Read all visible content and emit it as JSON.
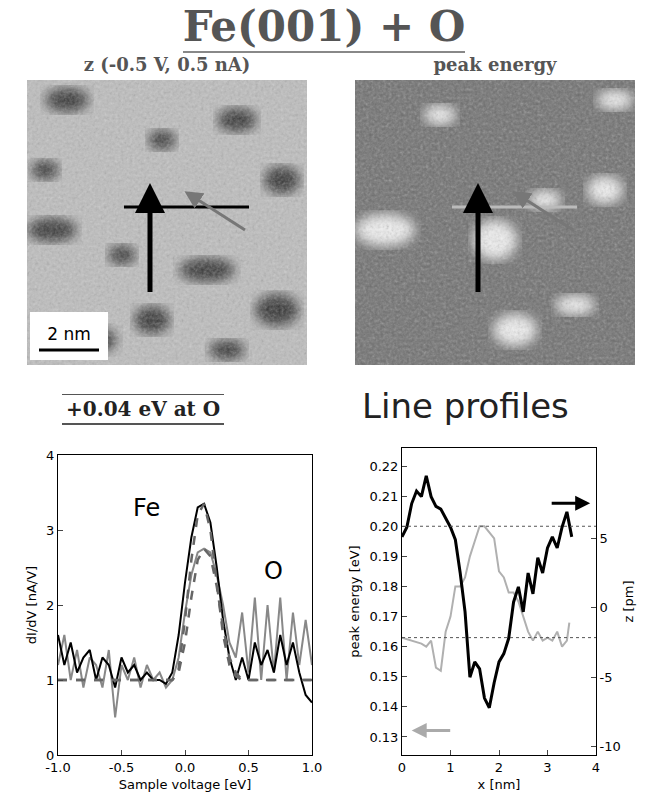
{
  "title": "Fe(001) + O",
  "images": [
    {
      "title": "z (-0.5 V, 0.5 nA)",
      "scale_bar": "2 nm"
    },
    {
      "title": "peak energy"
    }
  ],
  "chart_data": [
    {
      "type": "line",
      "title": "+0.04 eV at O",
      "x_label": "Sample voltage [eV]",
      "y_label": "dI/dV [nA/V]",
      "xlim": [
        -1,
        1
      ],
      "xticks": [
        {
          "value": -1,
          "label": "-1.0"
        },
        {
          "value": -0.5,
          "label": "-0.5"
        },
        {
          "value": 0,
          "label": "0.0"
        },
        {
          "value": 0.5,
          "label": "0.5"
        },
        {
          "value": 1,
          "label": "1.0"
        }
      ],
      "ylim": [
        0,
        4
      ],
      "yticks": [
        0,
        1,
        2,
        3,
        4
      ],
      "x": [
        -1.0,
        -0.95,
        -0.9,
        -0.85,
        -0.8,
        -0.75,
        -0.7,
        -0.65,
        -0.6,
        -0.55,
        -0.5,
        -0.45,
        -0.4,
        -0.35,
        -0.3,
        -0.25,
        -0.2,
        -0.15,
        -0.1,
        -0.05,
        0,
        0.05,
        0.1,
        0.15,
        0.2,
        0.25,
        0.3,
        0.35,
        0.4,
        0.45,
        0.5,
        0.55,
        0.6,
        0.65,
        0.7,
        0.75,
        0.8,
        0.85,
        0.9,
        0.95,
        1.0
      ],
      "series": [
        {
          "color": "#888888",
          "line_style": "solid",
          "values": [
            1.2,
            1.6,
            1.0,
            1.4,
            0.9,
            1.3,
            1.2,
            0.9,
            1.4,
            0.5,
            1.2,
            1.0,
            1.3,
            0.9,
            1.2,
            1.0,
            1.1,
            0.9,
            1.0,
            1.3,
            1.9,
            2.4,
            2.7,
            2.75,
            2.7,
            2.4,
            2.0,
            1.5,
            1.3,
            1.9,
            1.1,
            2.1,
            1.0,
            2.0,
            1.1,
            2.1,
            1.0,
            1.9,
            1.2,
            1.8,
            1.2
          ]
        },
        {
          "color": "#000000",
          "line_style": "solid",
          "values": [
            1.6,
            1.2,
            1.5,
            1.1,
            1.3,
            1.4,
            1.0,
            1.3,
            1.2,
            0.9,
            1.3,
            1.1,
            1.2,
            1.0,
            1.1,
            1.0,
            1.0,
            0.95,
            1.1,
            1.6,
            2.3,
            2.9,
            3.3,
            3.35,
            3.1,
            2.5,
            1.8,
            1.3,
            1.0,
            1.3,
            1.0,
            1.5,
            1.2,
            1.4,
            1.1,
            1.6,
            1.2,
            1.5,
            1.1,
            0.8,
            0.7
          ]
        },
        {
          "color": "#666666",
          "line_style": "dashed",
          "values": [
            1.0,
            1.0,
            1.0,
            1.0,
            1.0,
            1.0,
            1.0,
            1.0,
            1.0,
            1.0,
            1.0,
            1.0,
            1.0,
            1.0,
            1.0,
            1.0,
            1.0,
            1.0,
            1.0,
            1.15,
            1.8,
            2.6,
            3.2,
            3.35,
            3.0,
            2.3,
            1.6,
            1.2,
            1.05,
            1.0,
            1.0,
            1.0,
            1.0,
            1.0,
            1.0,
            1.0,
            1.0,
            1.0,
            1.0,
            1.0,
            1.0
          ]
        },
        {
          "color": "#666666",
          "line_style": "dashed",
          "values": [
            1.0,
            1.0,
            1.0,
            1.0,
            1.0,
            1.0,
            1.0,
            1.0,
            1.0,
            1.0,
            1.0,
            1.0,
            1.0,
            1.0,
            1.0,
            1.0,
            1.0,
            1.0,
            1.0,
            1.1,
            1.5,
            2.1,
            2.6,
            2.75,
            2.65,
            2.25,
            1.7,
            1.3,
            1.1,
            1.0,
            1.0,
            1.0,
            1.0,
            1.0,
            1.0,
            1.0,
            1.0,
            1.0,
            1.0,
            1.0,
            1.0
          ]
        }
      ],
      "annotations": [
        {
          "text": "Fe",
          "x": -0.3,
          "y": 3.3
        },
        {
          "text": "O",
          "x": 0.7,
          "y": 2.45
        }
      ]
    },
    {
      "type": "line",
      "title": "Line profiles",
      "x_label": "x [nm]",
      "y_label": "peak energy [eV]",
      "y2_label": "z [pm]",
      "xlim": [
        0,
        4
      ],
      "xticks": [
        0,
        1,
        2,
        3,
        4
      ],
      "ylim": [
        0.124,
        0.226
      ],
      "yticks": [
        0.13,
        0.14,
        0.15,
        0.16,
        0.17,
        0.18,
        0.19,
        {
          "value": 0.2,
          "label": "0.20"
        },
        0.21,
        0.22
      ],
      "y2lim": [
        -10.6,
        11.5
      ],
      "y2ticks": [
        -10,
        -5,
        0,
        5
      ],
      "hlines": [
        0.2,
        0.163
      ],
      "series": [
        {
          "color": "#b0b0b0",
          "x": [
            0,
            0.2,
            0.4,
            0.5,
            0.6,
            0.7,
            0.8,
            0.9,
            1.0,
            1.1,
            1.2,
            1.3,
            1.4,
            1.5,
            1.6,
            1.7,
            1.8,
            1.9,
            2.0,
            2.1,
            2.2,
            2.3,
            2.4,
            2.5,
            2.6,
            2.7,
            2.8,
            2.9,
            3.0,
            3.1,
            3.2,
            3.3,
            3.4,
            3.45
          ],
          "values": [
            0.163,
            0.162,
            0.161,
            0.16,
            0.162,
            0.153,
            0.152,
            0.165,
            0.17,
            0.18,
            0.18,
            0.183,
            0.19,
            0.195,
            0.2,
            0.2,
            0.198,
            0.196,
            0.185,
            0.183,
            0.178,
            0.178,
            0.175,
            0.17,
            0.165,
            0.162,
            0.165,
            0.162,
            0.163,
            0.162,
            0.165,
            0.16,
            0.162,
            0.168
          ]
        },
        {
          "color": "#000000",
          "axis": "y2",
          "x": [
            0,
            0.1,
            0.2,
            0.3,
            0.4,
            0.5,
            0.6,
            0.7,
            0.8,
            0.9,
            1.0,
            1.1,
            1.2,
            1.3,
            1.4,
            1.5,
            1.6,
            1.7,
            1.8,
            1.9,
            2.0,
            2.1,
            2.2,
            2.3,
            2.4,
            2.5,
            2.6,
            2.7,
            2.8,
            2.9,
            3.0,
            3.1,
            3.2,
            3.3,
            3.4,
            3.5
          ],
          "values": [
            5.1,
            5.8,
            7.5,
            8.4,
            8.0,
            9.5,
            8.0,
            7.3,
            7.1,
            6.4,
            5.8,
            4.9,
            2.5,
            -0.3,
            -5.0,
            -3.9,
            -4.4,
            -6.5,
            -7.2,
            -5.4,
            -3.9,
            -3.3,
            -2.2,
            0.4,
            1.5,
            -0.3,
            2.5,
            1.0,
            3.6,
            2.5,
            4.3,
            5.1,
            4.3,
            5.8,
            6.9,
            5.1
          ]
        }
      ]
    }
  ]
}
